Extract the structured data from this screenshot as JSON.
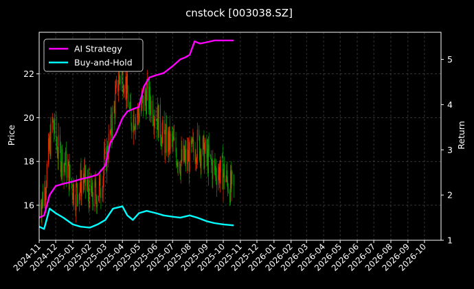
{
  "chart_data": {
    "type": "line",
    "title": "cnstock [003038.SZ]",
    "ylabel_left": "Price",
    "ylabel_right": "Return",
    "ylim_left": [
      14.4,
      23.9
    ],
    "ylim_right": [
      1.0,
      5.6
    ],
    "xlim": [
      "2024-11-01",
      "2026-10-31"
    ],
    "yticks_left": [
      16,
      18,
      20,
      22
    ],
    "yticks_right": [
      1,
      2,
      3,
      4,
      5
    ],
    "xtick_labels": [
      "2024-11",
      "2024-12",
      "2025-01",
      "2025-02",
      "2025-03",
      "2025-04",
      "2025-05",
      "2025-06",
      "2025-07",
      "2025-08",
      "2025-09",
      "2025-10",
      "2025-11",
      "2025-12",
      "2026-01",
      "2026-02",
      "2026-03",
      "2026-04",
      "2026-05",
      "2026-06",
      "2026-07",
      "2026-08",
      "2026-09",
      "2026-10"
    ],
    "grid": true,
    "legend_position": "top-left",
    "legend": [
      {
        "name": "AI Strategy",
        "color": "#ff00ff"
      },
      {
        "name": "Buy-and-Hold",
        "color": "#00ffff"
      }
    ],
    "candle_colors": {
      "up": "#ff2a00",
      "down": "#00a000"
    },
    "price_anchors": {
      "x": [
        "2024-11-01",
        "2024-11-10",
        "2024-11-25",
        "2024-12-05",
        "2024-12-20",
        "2025-01-05",
        "2025-01-20",
        "2025-02-05",
        "2025-02-20",
        "2025-03-05",
        "2025-03-15",
        "2025-03-25",
        "2025-04-05",
        "2025-04-15",
        "2025-05-01",
        "2025-05-15",
        "2025-06-01",
        "2025-06-15",
        "2025-07-01",
        "2025-07-15",
        "2025-08-01",
        "2025-08-15",
        "2025-09-01",
        "2025-09-15",
        "2025-10-01",
        "2025-10-10",
        "2025-10-20"
      ],
      "close": [
        16.0,
        16.5,
        19.8,
        18.5,
        17.8,
        16.5,
        17.2,
        16.3,
        16.8,
        18.5,
        20.0,
        21.8,
        22.0,
        20.0,
        20.2,
        21.0,
        20.2,
        19.0,
        18.8,
        18.0,
        18.2,
        18.8,
        18.2,
        17.6,
        17.5,
        17.0,
        16.6
      ]
    },
    "series": [
      {
        "name": "AI Strategy",
        "axis": "right",
        "x": [
          "2024-11-01",
          "2024-11-10",
          "2024-11-20",
          "2024-12-01",
          "2024-12-15",
          "2025-01-01",
          "2025-01-15",
          "2025-02-01",
          "2025-02-15",
          "2025-03-01",
          "2025-03-10",
          "2025-03-20",
          "2025-04-01",
          "2025-04-10",
          "2025-04-20",
          "2025-05-01",
          "2025-05-10",
          "2025-05-20",
          "2025-06-01",
          "2025-06-15",
          "2025-07-01",
          "2025-07-15",
          "2025-07-25",
          "2025-08-01",
          "2025-08-10",
          "2025-08-20",
          "2025-09-01",
          "2025-09-15",
          "2025-10-01",
          "2025-10-20"
        ],
        "values": [
          1.5,
          1.55,
          2.0,
          2.2,
          2.25,
          2.3,
          2.35,
          2.4,
          2.45,
          2.65,
          3.15,
          3.35,
          3.7,
          3.85,
          3.9,
          3.95,
          4.4,
          4.6,
          4.65,
          4.7,
          4.85,
          5.0,
          5.05,
          5.1,
          5.4,
          5.35,
          5.38,
          5.42,
          5.42,
          5.42
        ]
      },
      {
        "name": "Buy-and-Hold",
        "axis": "right",
        "x": [
          "2024-11-01",
          "2024-11-10",
          "2024-11-20",
          "2024-12-01",
          "2024-12-15",
          "2025-01-01",
          "2025-01-15",
          "2025-02-01",
          "2025-02-15",
          "2025-03-01",
          "2025-03-15",
          "2025-04-01",
          "2025-04-10",
          "2025-04-20",
          "2025-05-01",
          "2025-05-15",
          "2025-06-01",
          "2025-06-15",
          "2025-07-01",
          "2025-07-15",
          "2025-08-01",
          "2025-08-15",
          "2025-09-01",
          "2025-09-15",
          "2025-10-01",
          "2025-10-20"
        ],
        "values": [
          1.3,
          1.25,
          1.7,
          1.6,
          1.5,
          1.35,
          1.3,
          1.28,
          1.35,
          1.45,
          1.7,
          1.75,
          1.55,
          1.45,
          1.6,
          1.65,
          1.6,
          1.55,
          1.52,
          1.5,
          1.55,
          1.5,
          1.42,
          1.38,
          1.35,
          1.33
        ]
      }
    ]
  }
}
